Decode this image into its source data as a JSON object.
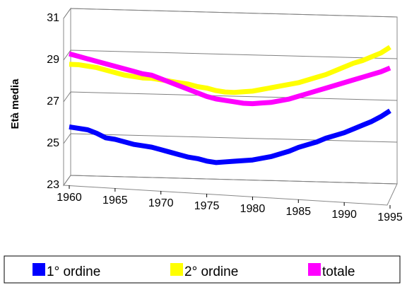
{
  "chart_data": {
    "type": "line",
    "y_label": "Età media",
    "x": [
      1960,
      1961,
      1962,
      1963,
      1964,
      1965,
      1966,
      1967,
      1968,
      1969,
      1970,
      1971,
      1972,
      1973,
      1974,
      1975,
      1976,
      1977,
      1978,
      1979,
      1980,
      1981,
      1982,
      1983,
      1984,
      1985,
      1986,
      1987,
      1988,
      1989,
      1990,
      1991,
      1992,
      1993,
      1994,
      1995
    ],
    "series": [
      {
        "name": "1° ordine",
        "color": "#0000ff",
        "values": [
          25.8,
          25.75,
          25.7,
          25.55,
          25.35,
          25.3,
          25.2,
          25.1,
          25.05,
          25.0,
          24.9,
          24.8,
          24.7,
          24.6,
          24.55,
          24.45,
          24.4,
          24.45,
          24.5,
          24.55,
          24.6,
          24.7,
          24.8,
          24.95,
          25.1,
          25.3,
          25.45,
          25.6,
          25.8,
          25.95,
          26.1,
          26.3,
          26.5,
          26.7,
          26.95,
          27.25
        ]
      },
      {
        "name": "2° ordine",
        "color": "#ffff00",
        "values": [
          28.8,
          28.8,
          28.75,
          28.7,
          28.6,
          28.5,
          28.4,
          28.35,
          28.3,
          28.3,
          28.25,
          28.2,
          28.15,
          28.1,
          28.0,
          27.95,
          27.85,
          27.8,
          27.8,
          27.85,
          27.9,
          28.0,
          28.1,
          28.2,
          28.3,
          28.4,
          28.55,
          28.7,
          28.85,
          29.05,
          29.25,
          29.45,
          29.6,
          29.8,
          30.0,
          30.3
        ]
      },
      {
        "name": "totale",
        "color": "#ff00ff",
        "values": [
          29.3,
          29.2,
          29.1,
          29.0,
          28.9,
          28.8,
          28.7,
          28.6,
          28.5,
          28.45,
          28.3,
          28.15,
          28.0,
          27.85,
          27.7,
          27.55,
          27.45,
          27.4,
          27.35,
          27.3,
          27.3,
          27.35,
          27.4,
          27.5,
          27.6,
          27.75,
          27.9,
          28.05,
          28.2,
          28.35,
          28.5,
          28.65,
          28.8,
          28.95,
          29.1,
          29.3
        ]
      }
    ],
    "xlim": [
      1960,
      1995
    ],
    "xticks": [
      1960,
      1965,
      1970,
      1975,
      1980,
      1985,
      1990,
      1995
    ],
    "ylim": [
      23,
      31
    ],
    "yticks": [
      23,
      25,
      27,
      29,
      31
    ],
    "grid": true,
    "legend": "bottom"
  }
}
